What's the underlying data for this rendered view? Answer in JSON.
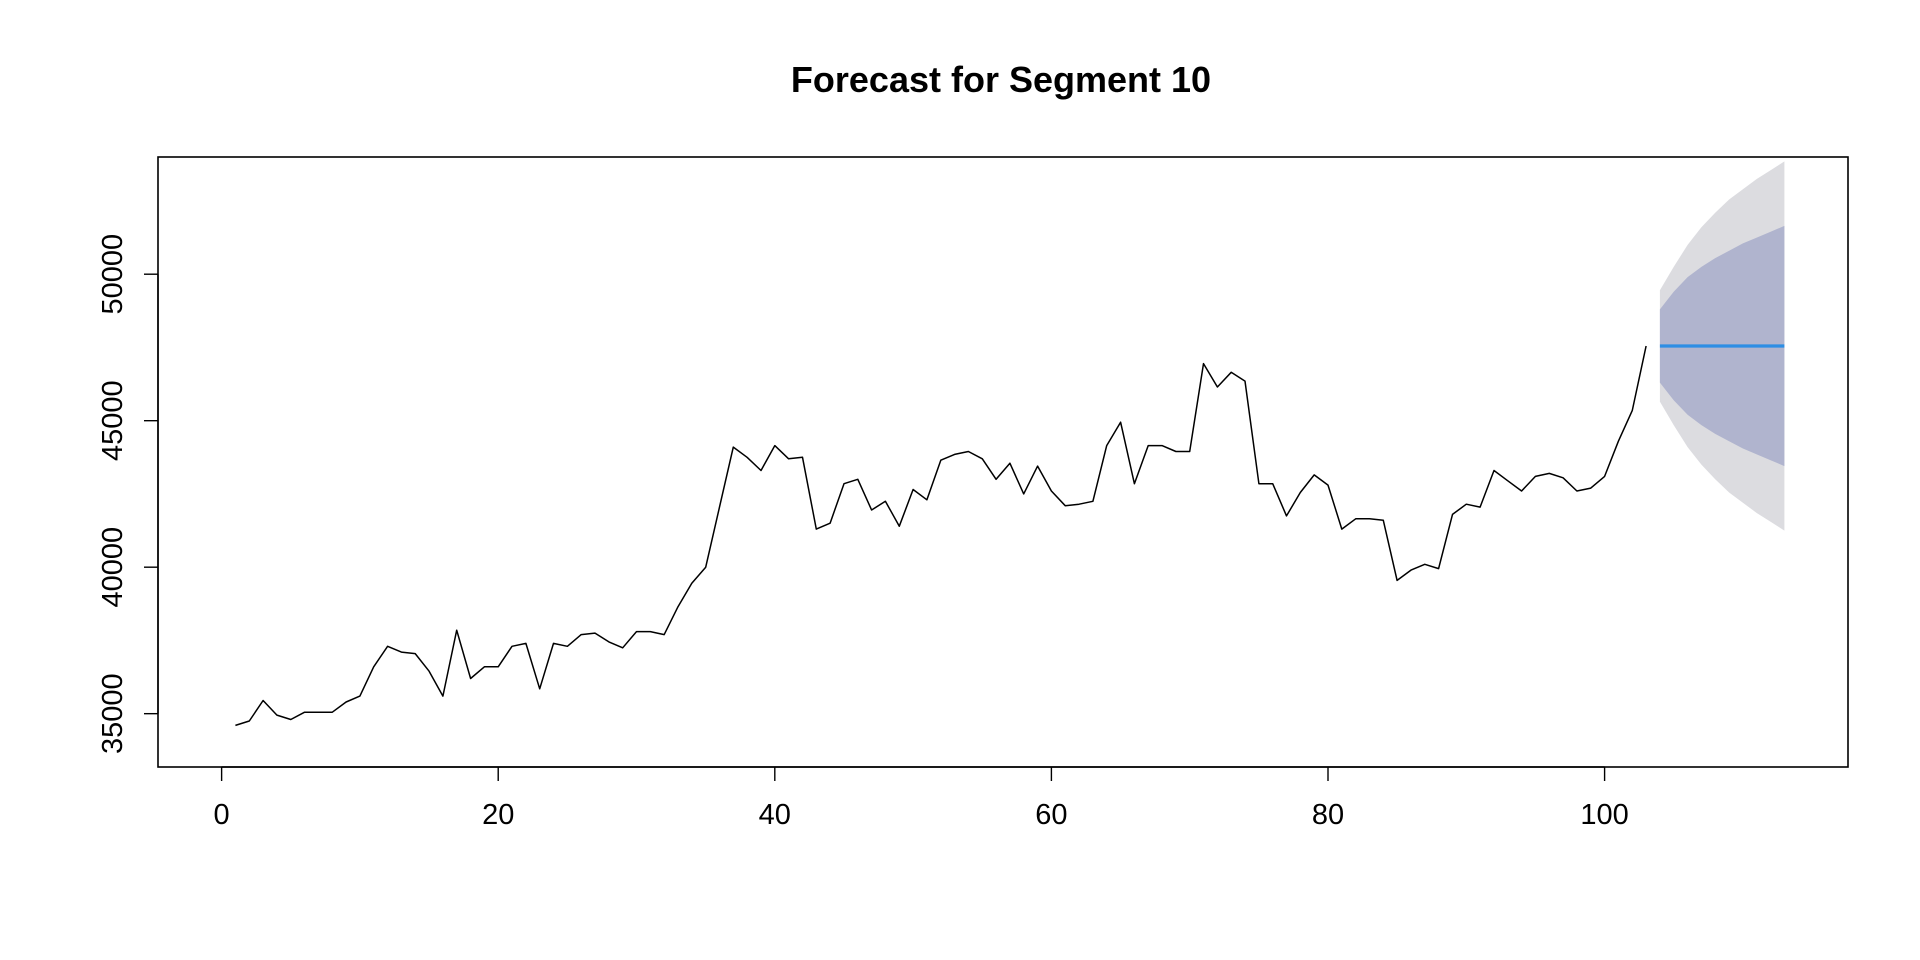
{
  "chart_data": {
    "type": "line",
    "title": "Forecast for Segment 10",
    "xlabel": "",
    "ylabel": "",
    "xlim": [
      -4.6,
      117.6
    ],
    "ylim": [
      33180,
      54000
    ],
    "x_ticks": [
      0,
      20,
      40,
      60,
      80,
      100
    ],
    "y_ticks": [
      35000,
      40000,
      45000,
      50000
    ],
    "grid": false,
    "legend": "none",
    "series": [
      {
        "role": "observed",
        "color": "#000000",
        "x_start": 1,
        "values": [
          34600,
          34750,
          35450,
          34950,
          34800,
          35050,
          35050,
          35050,
          35400,
          35600,
          36600,
          37300,
          37100,
          37050,
          36450,
          35600,
          37850,
          36200,
          36600,
          36600,
          37300,
          37400,
          35850,
          37400,
          37300,
          37700,
          37750,
          37450,
          37250,
          37800,
          37800,
          37700,
          38650,
          39450,
          40000,
          42050,
          44100,
          43750,
          43300,
          44150,
          43700,
          43750,
          41300,
          41500,
          42850,
          43000,
          41950,
          42250,
          41400,
          42650,
          42300,
          43650,
          43850,
          43950,
          43700,
          43000,
          43550,
          42500,
          43450,
          42600,
          42100,
          42150,
          42250,
          44150,
          44950,
          42850,
          44150,
          44150,
          43950,
          43950,
          46950,
          46150,
          46650,
          46350,
          42850,
          42850,
          41750,
          42550,
          43150,
          42800,
          41300,
          41650,
          41650,
          41600,
          39550,
          39900,
          40100,
          39950,
          41800,
          42150,
          42050,
          43300,
          42950,
          42600,
          43100,
          43200,
          43050,
          42600,
          42700,
          43100,
          44300,
          45350,
          47550
        ]
      }
    ],
    "forecast": {
      "x_start": 104,
      "x_end": 113,
      "mean": 47550,
      "mean_color": "#2e8ee4",
      "interval_80": {
        "color": "#b0b4ce",
        "lower": [
          46300,
          45700,
          45200,
          44850,
          44550,
          44300,
          44050,
          43850,
          43650,
          43450
        ],
        "upper": [
          48800,
          49400,
          49900,
          50250,
          50550,
          50800,
          51050,
          51250,
          51450,
          51650
        ]
      },
      "interval_95": {
        "color": "#dcdce0",
        "lower": [
          45650,
          44850,
          44100,
          43500,
          43000,
          42550,
          42200,
          41850,
          41550,
          41250
        ],
        "upper": [
          49450,
          50250,
          51000,
          51600,
          52100,
          52550,
          52900,
          53250,
          53550,
          53850
        ]
      }
    }
  }
}
